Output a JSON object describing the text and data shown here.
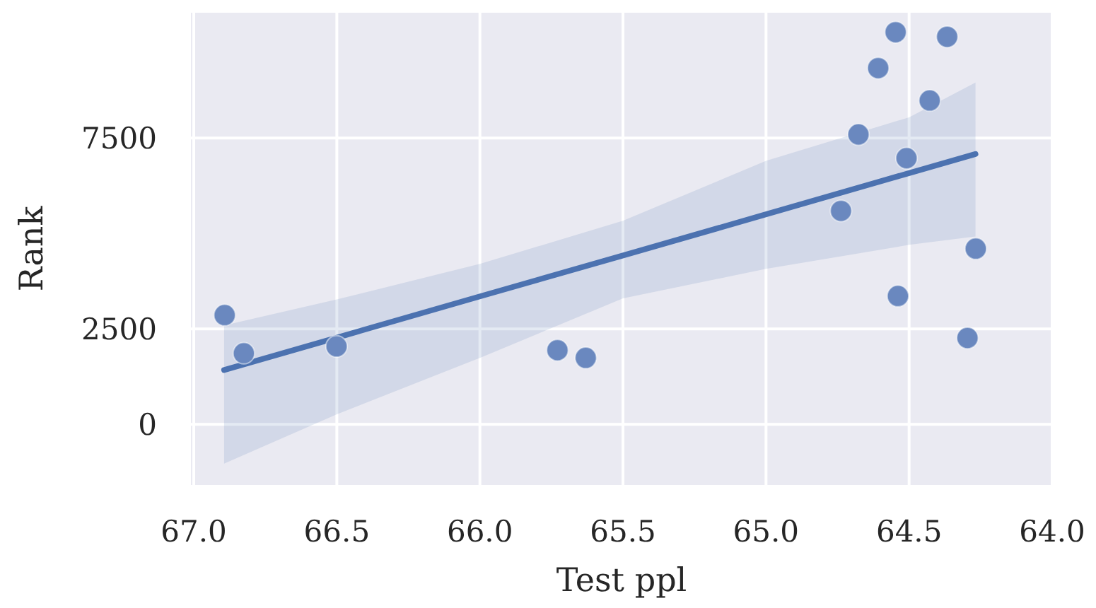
{
  "chart_data": {
    "type": "scatter",
    "xlabel": "Test ppl",
    "ylabel": "Rank",
    "xlim": [
      67.01,
      64.0
    ],
    "ylim": [
      -1590,
      10780
    ],
    "xticks": [
      {
        "value": 67,
        "label": "67.0"
      },
      {
        "value": 66.5,
        "label": "66.5"
      },
      {
        "value": 66,
        "label": "66.0"
      },
      {
        "value": 65.5,
        "label": "65.5"
      },
      {
        "value": 65,
        "label": "65.0"
      },
      {
        "value": 64.5,
        "label": "64.5"
      },
      {
        "value": 64,
        "label": "64.0"
      }
    ],
    "yticks": [
      0,
      2500,
      7500
    ],
    "grid": true,
    "marker": "circle",
    "series": [
      {
        "color": "#6a88bf",
        "x": [
          66.892,
          66.825,
          66.501,
          65.729,
          65.63,
          64.738,
          64.677,
          64.608,
          64.547,
          64.539,
          64.509,
          64.428,
          64.367,
          64.296,
          64.267
        ],
        "values": [
          2860,
          1860,
          2040,
          1940,
          1740,
          5590,
          7590,
          9330,
          10270,
          3360,
          6970,
          8480,
          10150,
          2260,
          4600
        ]
      },
      {
        "type": "line",
        "color": "#4c72b0",
        "marker": "none",
        "line_style": "solid",
        "x": [
          66.894,
          66.5,
          66.0,
          65.5,
          65.0,
          64.5,
          64.268
        ],
        "values": [
          1420,
          2270,
          3350,
          4420,
          5500,
          6580,
          7080
        ],
        "lower": [
          -1030,
          260,
          1740,
          3300,
          4070,
          4700,
          4920
        ],
        "upper": [
          2590,
          3270,
          4200,
          5330,
          6900,
          8040,
          8950
        ]
      }
    ]
  }
}
